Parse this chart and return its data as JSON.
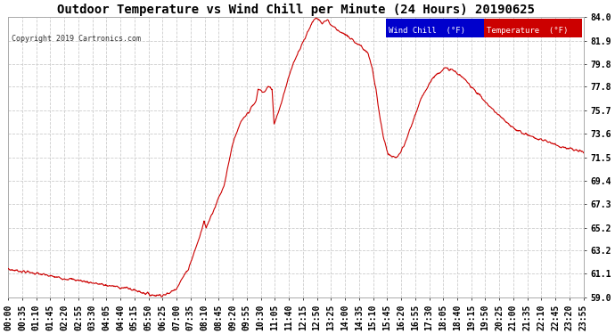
{
  "title": "Outdoor Temperature vs Wind Chill per Minute (24 Hours) 20190625",
  "copyright": "Copyright 2019 Cartronics.com",
  "background_color": "#ffffff",
  "plot_background": "#ffffff",
  "line_color": "#cc0000",
  "legend_wind_chill_bg": "#0000cc",
  "legend_temp_bg": "#cc0000",
  "legend_wind_chill_text": "Wind Chill  (°F)",
  "legend_temp_text": "Temperature  (°F)",
  "ylim": [
    59.0,
    84.0
  ],
  "yticks": [
    59.0,
    61.1,
    63.2,
    65.2,
    67.3,
    69.4,
    71.5,
    73.6,
    75.7,
    77.8,
    79.8,
    81.9,
    84.0
  ],
  "grid_color": "#cccccc",
  "title_fontsize": 10,
  "tick_fontsize": 7,
  "x_tick_labels": [
    "00:00",
    "00:35",
    "01:10",
    "01:45",
    "02:20",
    "02:55",
    "03:30",
    "04:05",
    "04:40",
    "05:15",
    "05:50",
    "06:25",
    "07:00",
    "07:35",
    "08:10",
    "08:45",
    "09:20",
    "09:55",
    "10:30",
    "11:05",
    "11:40",
    "12:15",
    "12:50",
    "13:25",
    "14:00",
    "14:35",
    "15:10",
    "15:45",
    "16:20",
    "16:55",
    "17:30",
    "18:05",
    "18:40",
    "19:15",
    "19:50",
    "20:25",
    "21:00",
    "21:35",
    "22:10",
    "22:45",
    "23:20",
    "23:55"
  ]
}
